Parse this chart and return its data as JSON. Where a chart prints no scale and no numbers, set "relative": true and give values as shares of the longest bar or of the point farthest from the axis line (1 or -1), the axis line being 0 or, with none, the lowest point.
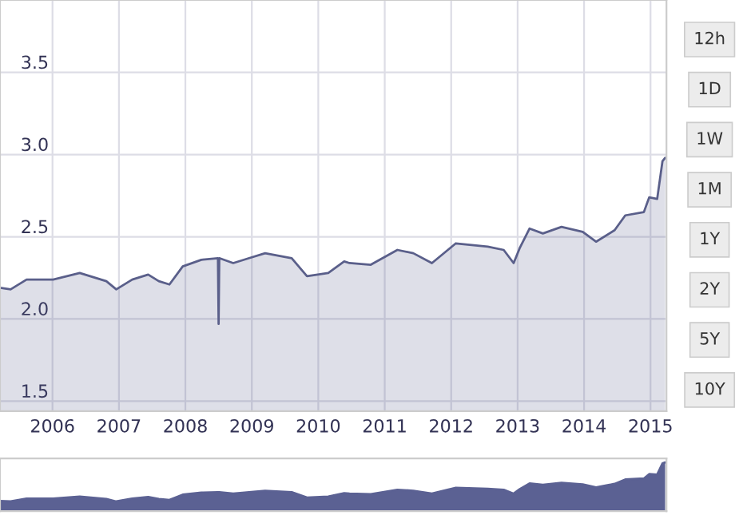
{
  "chart_data": [
    {
      "type": "area",
      "x": [
        2005.21,
        2005.37,
        2005.61,
        2006.01,
        2006.41,
        2006.81,
        2006.96,
        2007.2,
        2007.44,
        2007.6,
        2007.76,
        2007.96,
        2008.24,
        2008.49,
        2008.5,
        2008.51,
        2008.72,
        2008.96,
        2009.2,
        2009.6,
        2009.83,
        2010.15,
        2010.39,
        2010.47,
        2010.79,
        2011.19,
        2011.43,
        2011.71,
        2012.07,
        2012.55,
        2012.79,
        2012.94,
        2013.03,
        2013.18,
        2013.38,
        2013.66,
        2013.98,
        2014.18,
        2014.46,
        2014.62,
        2014.9,
        2014.98,
        2015.1,
        2015.18,
        2015.22
      ],
      "series": [
        {
          "color": "#5a5f8a",
          "values": [
            2.19,
            2.18,
            2.24,
            2.24,
            2.28,
            2.23,
            2.18,
            2.24,
            2.27,
            2.23,
            2.21,
            2.32,
            2.36,
            2.37,
            1.97,
            2.37,
            2.34,
            2.37,
            2.4,
            2.37,
            2.26,
            2.28,
            2.35,
            2.34,
            2.33,
            2.42,
            2.4,
            2.34,
            2.46,
            2.44,
            2.42,
            2.34,
            2.43,
            2.55,
            2.52,
            2.56,
            2.53,
            2.47,
            2.54,
            2.63,
            2.65,
            2.74,
            2.73,
            2.96,
            2.98
          ]
        }
      ],
      "xlim": [
        2005.21,
        2015.24
      ],
      "xticks": [
        2006,
        2007,
        2008,
        2009,
        2010,
        2011,
        2012,
        2013,
        2014,
        2015
      ],
      "ylim": [
        1.44,
        3.94
      ],
      "yticks": [
        {
          "value": 1.5,
          "label": "1.5"
        },
        {
          "value": 2.0,
          "label": "2.0"
        },
        {
          "value": 2.5,
          "label": "2.5"
        },
        {
          "value": 3.0,
          "label": "3.0"
        },
        {
          "value": 3.5,
          "label": "3.5"
        }
      ],
      "grid": true,
      "legend": false,
      "annotations": [
        "12h",
        "1D",
        "1W",
        "1M",
        "1Y",
        "2Y",
        "5Y",
        "10Y"
      ]
    },
    {
      "type": "area",
      "x": [
        2005.21,
        2005.37,
        2005.61,
        2006.01,
        2006.41,
        2006.81,
        2006.96,
        2007.2,
        2007.44,
        2007.6,
        2007.76,
        2007.96,
        2008.24,
        2008.49,
        2008.51,
        2008.72,
        2008.96,
        2009.2,
        2009.6,
        2009.83,
        2010.15,
        2010.39,
        2010.47,
        2010.79,
        2011.19,
        2011.43,
        2011.71,
        2012.07,
        2012.55,
        2012.79,
        2012.94,
        2013.03,
        2013.18,
        2013.38,
        2013.66,
        2013.98,
        2014.18,
        2014.46,
        2014.62,
        2014.9,
        2014.98,
        2015.1,
        2015.18,
        2015.22
      ],
      "series": [
        {
          "color": "#5b6193",
          "values": [
            0.21,
            0.2,
            0.26,
            0.26,
            0.3,
            0.25,
            0.2,
            0.26,
            0.29,
            0.25,
            0.23,
            0.34,
            0.38,
            0.39,
            0.39,
            0.36,
            0.39,
            0.42,
            0.39,
            0.28,
            0.3,
            0.37,
            0.36,
            0.35,
            0.44,
            0.42,
            0.36,
            0.48,
            0.46,
            0.44,
            0.36,
            0.45,
            0.57,
            0.54,
            0.58,
            0.55,
            0.49,
            0.56,
            0.65,
            0.67,
            0.76,
            0.75,
            0.98,
            1
          ]
        }
      ],
      "xlim": [
        2005.21,
        2015.24
      ],
      "relative": true,
      "grid": true
    }
  ]
}
